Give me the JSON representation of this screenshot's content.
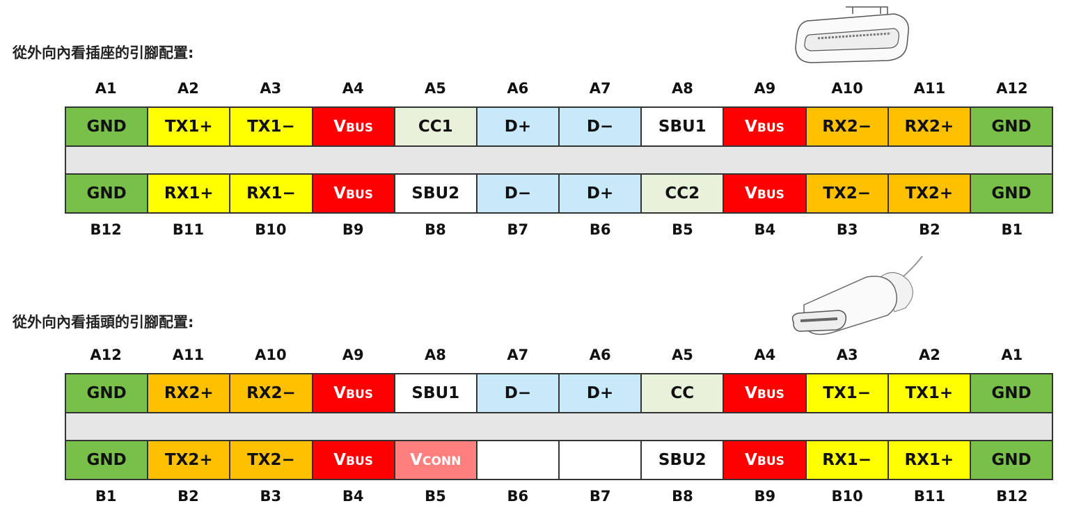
{
  "sections": [
    {
      "title": "從外向內看插座的引腳配置:",
      "top_labels": [
        "A1",
        "A2",
        "A3",
        "A4",
        "A5",
        "A6",
        "A7",
        "A8",
        "A9",
        "A10",
        "A11",
        "A12"
      ],
      "row_a": [
        {
          "label": "GND",
          "color": "#79c04a"
        },
        {
          "label": "TX1+",
          "color": "#ffff00"
        },
        {
          "label": "TX1−",
          "color": "#ffff00"
        },
        {
          "label": "VBUS",
          "color": "#ff0000"
        },
        {
          "label": "CC1",
          "color": "#e8f2da"
        },
        {
          "label": "D+",
          "color": "#c7e9fa"
        },
        {
          "label": "D−",
          "color": "#c7e9fa"
        },
        {
          "label": "SBU1",
          "color": "#ffffff"
        },
        {
          "label": "VBUS",
          "color": "#ff0000"
        },
        {
          "label": "RX2−",
          "color": "#ffc000"
        },
        {
          "label": "RX2+",
          "color": "#ffc000"
        },
        {
          "label": "GND",
          "color": "#79c04a"
        }
      ],
      "row_b": [
        {
          "label": "GND",
          "color": "#79c04a"
        },
        {
          "label": "RX1+",
          "color": "#ffff00"
        },
        {
          "label": "RX1−",
          "color": "#ffff00"
        },
        {
          "label": "VBUS",
          "color": "#ff0000"
        },
        {
          "label": "SBU2",
          "color": "#ffffff"
        },
        {
          "label": "D−",
          "color": "#c7e9fa"
        },
        {
          "label": "D+",
          "color": "#c7e9fa"
        },
        {
          "label": "CC2",
          "color": "#e8f2da"
        },
        {
          "label": "VBUS",
          "color": "#ff0000"
        },
        {
          "label": "TX2−",
          "color": "#ffc000"
        },
        {
          "label": "TX2+",
          "color": "#ffc000"
        },
        {
          "label": "GND",
          "color": "#79c04a"
        }
      ],
      "bottom_labels": [
        "B12",
        "B11",
        "B10",
        "B9",
        "B8",
        "B7",
        "B6",
        "B5",
        "B4",
        "B3",
        "B2",
        "B1"
      ]
    },
    {
      "title": "從外向內看插頭的引腳配置:",
      "top_labels": [
        "A12",
        "A11",
        "A10",
        "A9",
        "A8",
        "A7",
        "A6",
        "A5",
        "A4",
        "A3",
        "A2",
        "A1"
      ],
      "row_a": [
        {
          "label": "GND",
          "color": "#79c04a"
        },
        {
          "label": "RX2+",
          "color": "#ffc000"
        },
        {
          "label": "RX2−",
          "color": "#ffc000"
        },
        {
          "label": "VBUS",
          "color": "#ff0000"
        },
        {
          "label": "SBU1",
          "color": "#ffffff"
        },
        {
          "label": "D−",
          "color": "#c7e9fa"
        },
        {
          "label": "D+",
          "color": "#c7e9fa"
        },
        {
          "label": "CC",
          "color": "#e8f2da"
        },
        {
          "label": "VBUS",
          "color": "#ff0000"
        },
        {
          "label": "TX1−",
          "color": "#ffff00"
        },
        {
          "label": "TX1+",
          "color": "#ffff00"
        },
        {
          "label": "GND",
          "color": "#79c04a"
        }
      ],
      "row_b": [
        {
          "label": "GND",
          "color": "#79c04a"
        },
        {
          "label": "TX2+",
          "color": "#ffc000"
        },
        {
          "label": "TX2−",
          "color": "#ffc000"
        },
        {
          "label": "VBUS",
          "color": "#ff0000"
        },
        {
          "label": "VCONN",
          "color": "#ff7f7f"
        },
        {
          "color": "#ffffff"
        },
        {
          "color": "#ffffff"
        },
        {
          "label": "SBU2",
          "color": "#ffffff"
        },
        {
          "label": "VBUS",
          "color": "#ff0000"
        },
        {
          "label": "RX1−",
          "color": "#ffff00"
        },
        {
          "label": "RX1+",
          "color": "#ffff00"
        },
        {
          "label": "GND",
          "color": "#79c04a"
        }
      ],
      "bottom_labels": [
        "B1",
        "B2",
        "B3",
        "B4",
        "B5",
        "B6",
        "B7",
        "B8",
        "B9",
        "B10",
        "B11",
        "B12"
      ]
    }
  ]
}
